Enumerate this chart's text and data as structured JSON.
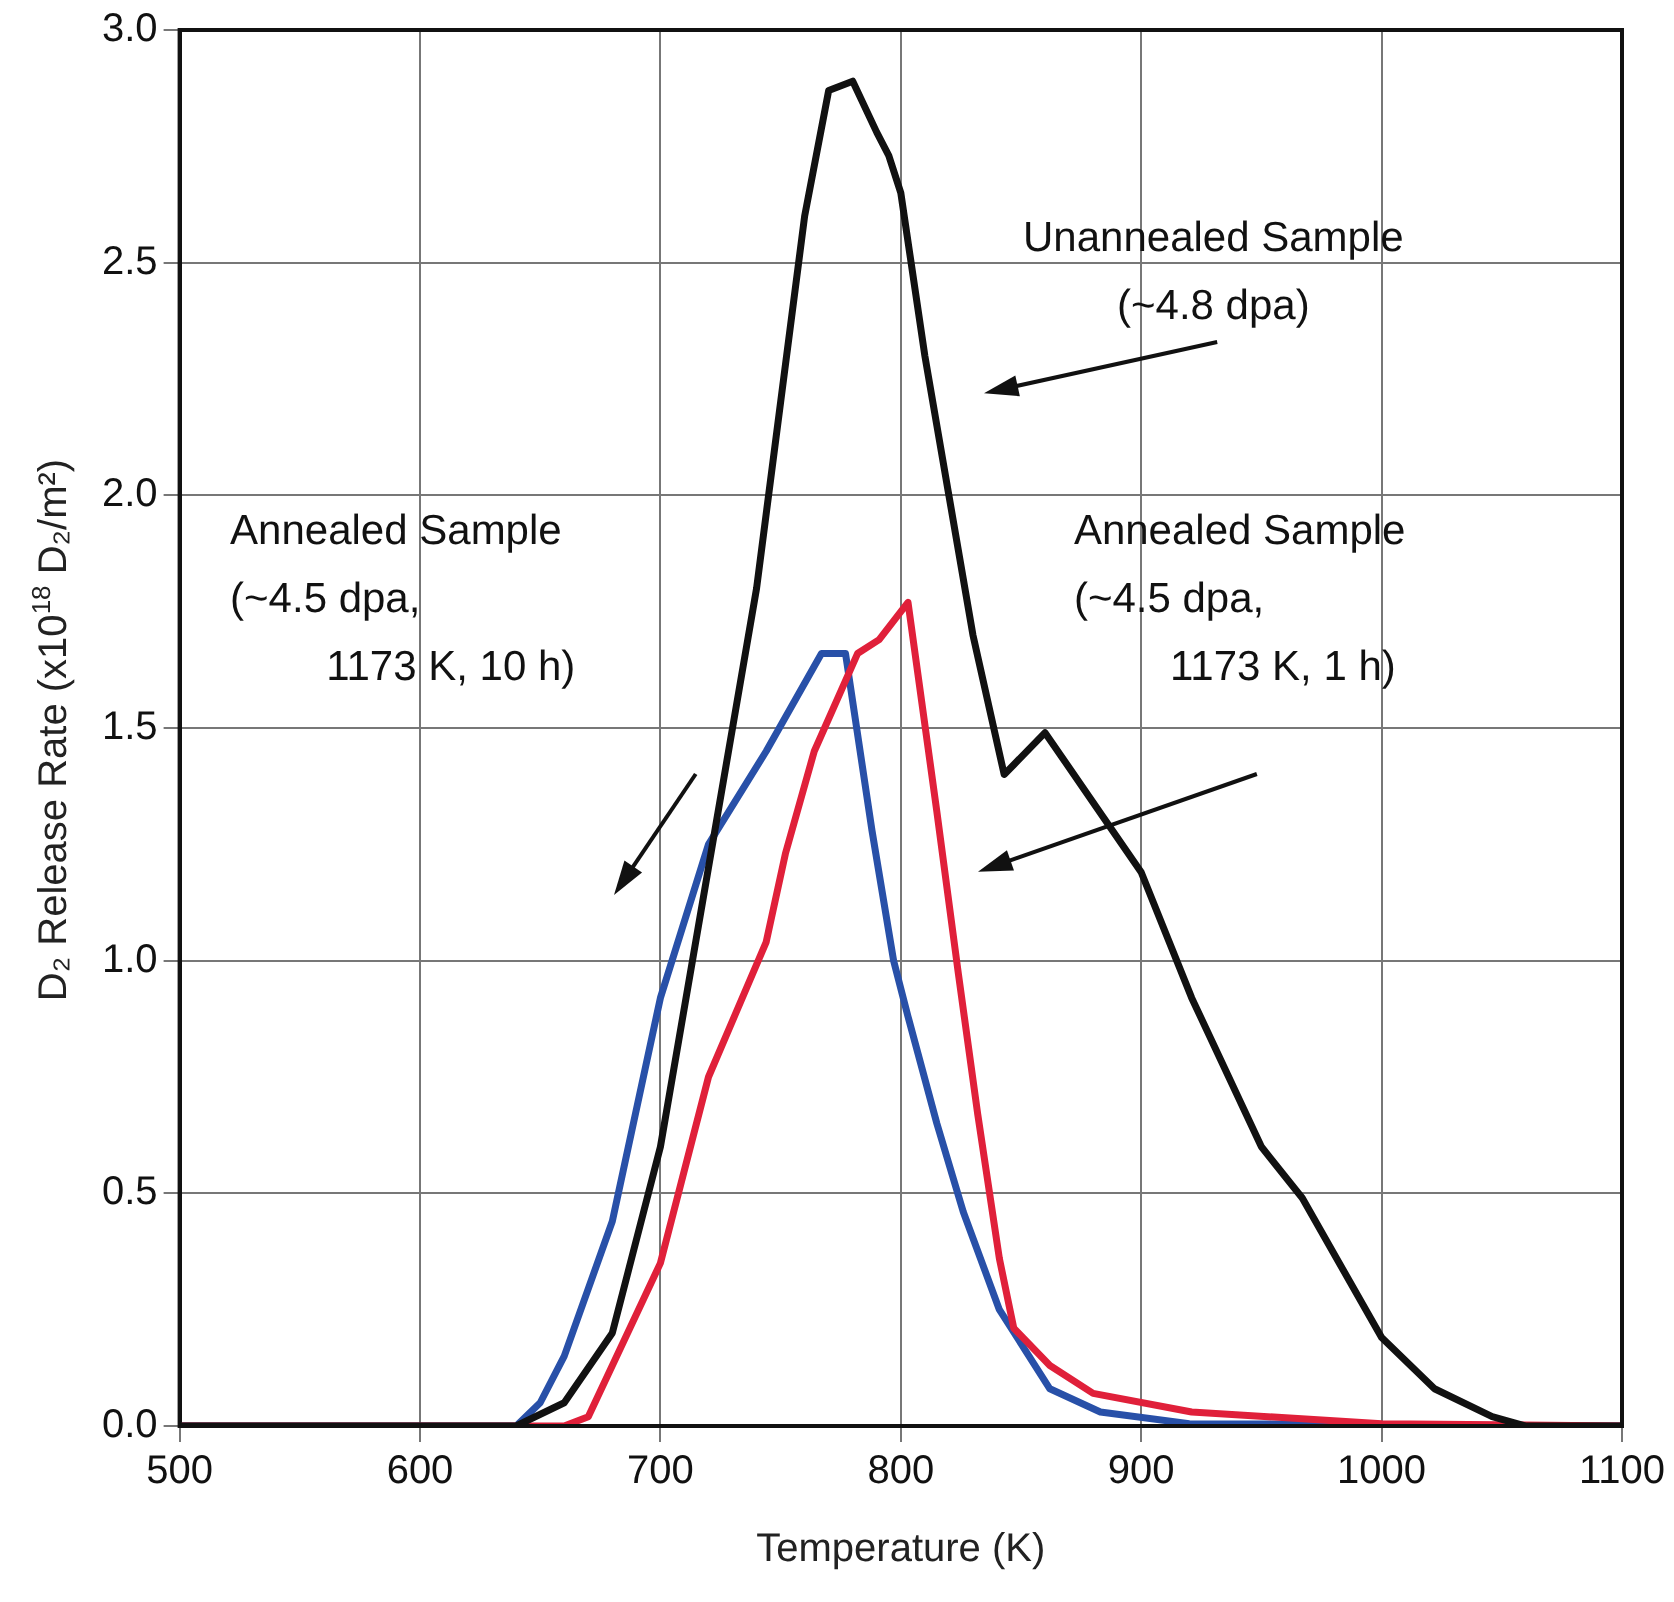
{
  "chart_data": {
    "type": "line",
    "xlabel": "Temperature (K)",
    "ylabel": "D₂ Release Rate (x10$^{18}$ D₂/m²)",
    "xlim": [
      500,
      1100
    ],
    "xticks": [
      500,
      600,
      700,
      800,
      900,
      1000,
      1100
    ],
    "ylim": [
      0,
      3
    ],
    "yticks": [
      {
        "value": 0,
        "label": "0.0"
      },
      {
        "value": 0.5,
        "label": "0.5"
      },
      {
        "value": 1,
        "label": "1.0"
      },
      {
        "value": 1.5,
        "label": "1.5"
      },
      {
        "value": 2,
        "label": "2.0"
      },
      {
        "value": 2.5,
        "label": "2.5"
      },
      {
        "value": 3,
        "label": "3.0"
      }
    ],
    "grid": true,
    "legend": false,
    "marker": "none",
    "line_style": "solid",
    "series": [
      {
        "color": "#111111",
        "x": [
          500,
          600,
          640,
          660,
          680,
          700,
          720,
          730,
          740,
          750,
          760,
          770,
          780,
          790,
          795,
          800,
          810,
          820,
          830,
          843,
          860,
          880,
          900,
          921,
          950,
          967,
          1000,
          1022,
          1046,
          1060,
          1100
        ],
        "values": [
          0,
          0,
          0,
          0.05,
          0.2,
          0.6,
          1.2,
          1.5,
          1.8,
          2.2,
          2.6,
          2.87,
          2.89,
          2.78,
          2.73,
          2.65,
          2.3,
          2.0,
          1.7,
          1.4,
          1.49,
          1.34,
          1.19,
          0.92,
          0.6,
          0.49,
          0.19,
          0.08,
          0.02,
          0,
          0
        ]
      },
      {
        "color": "#e0203a",
        "x": [
          500,
          600,
          660,
          670,
          700,
          720,
          744,
          752,
          764,
          782,
          791,
          803,
          815,
          824,
          832,
          841,
          847,
          862,
          880,
          921,
          1000,
          1100
        ],
        "values": [
          0,
          0,
          0,
          0.02,
          0.35,
          0.75,
          1.04,
          1.23,
          1.45,
          1.66,
          1.69,
          1.77,
          1.32,
          0.97,
          0.67,
          0.36,
          0.21,
          0.13,
          0.07,
          0.03,
          0.005,
          0
        ]
      },
      {
        "color": "#2850a8",
        "x": [
          500,
          600,
          640,
          650,
          660,
          680,
          700,
          720,
          744,
          767,
          777,
          788,
          797,
          803,
          815,
          826,
          841,
          862,
          883,
          920,
          1100
        ],
        "values": [
          0,
          0,
          0,
          0.05,
          0.15,
          0.44,
          0.92,
          1.25,
          1.45,
          1.66,
          1.66,
          1.28,
          1.0,
          0.88,
          0.65,
          0.46,
          0.25,
          0.08,
          0.03,
          0.005,
          0
        ]
      }
    ],
    "annotations": [
      "Unannealed Sample\n(~4.8 dpa)",
      "Annealed Sample\n(~4.5 dpa,\n1173 K, 10 h)",
      "Annealed Sample\n(~4.5 dpa,\n1173 K, 1 h)"
    ]
  }
}
